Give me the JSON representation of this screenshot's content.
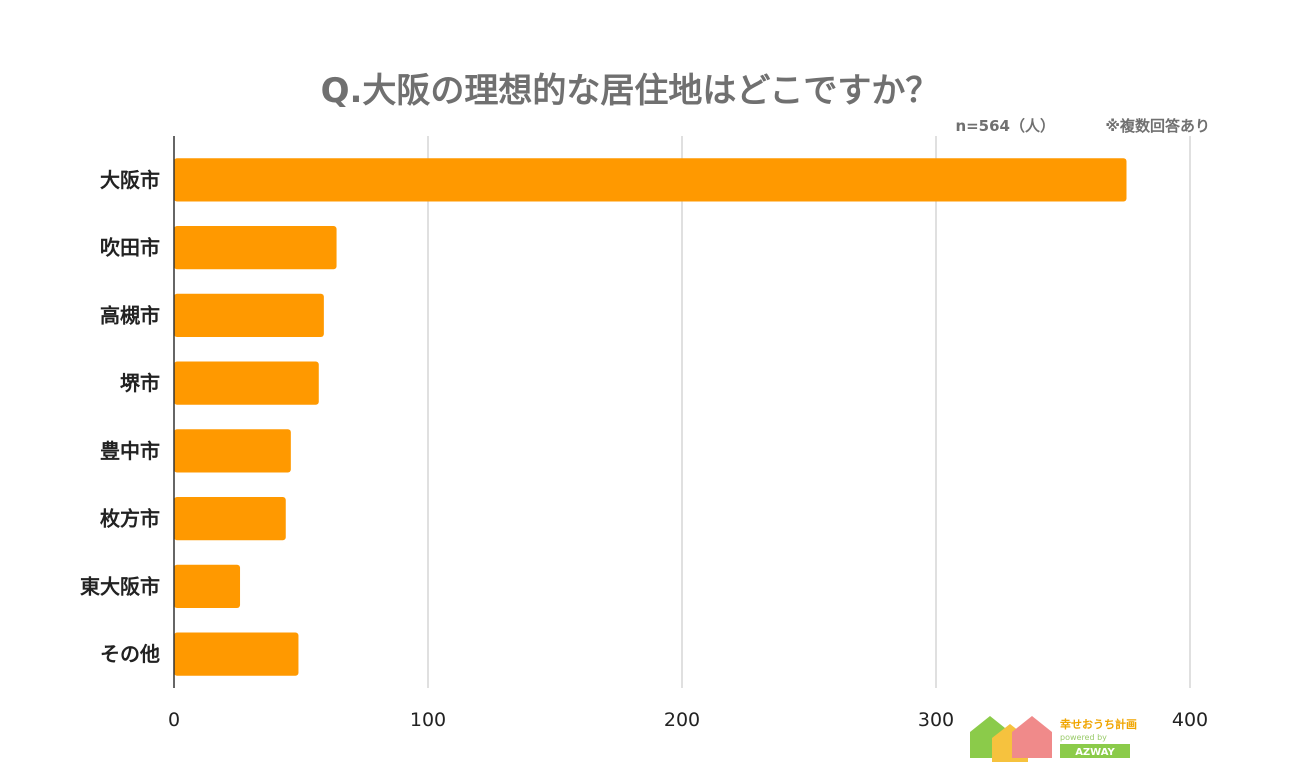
{
  "chart_data": {
    "type": "bar",
    "orientation": "horizontal",
    "title": "Q.大阪の理想的な居住地はどこですか？",
    "sample_note": "n=564（人）",
    "multi_answer_note": "※複数回答あり",
    "categories": [
      "大阪市",
      "吹田市",
      "高槻市",
      "堺市",
      "豊中市",
      "枚方市",
      "東大阪市",
      "その他"
    ],
    "values": [
      375,
      64,
      59,
      57,
      46,
      44,
      26,
      49
    ],
    "xlim": [
      0,
      400
    ],
    "xticks": [
      0,
      100,
      200,
      300,
      400
    ],
    "xlabel": "",
    "ylabel": "",
    "grid": true,
    "bar_color": "#FF9900"
  },
  "logo": {
    "name_text": "幸せおうち計画",
    "sub_text": "powered by",
    "brand_text": "AZWAY",
    "colors": {
      "green": "#8BCB4A",
      "yellow": "#F6C23E",
      "pink": "#F08A8A",
      "name": "#F0A500"
    }
  }
}
